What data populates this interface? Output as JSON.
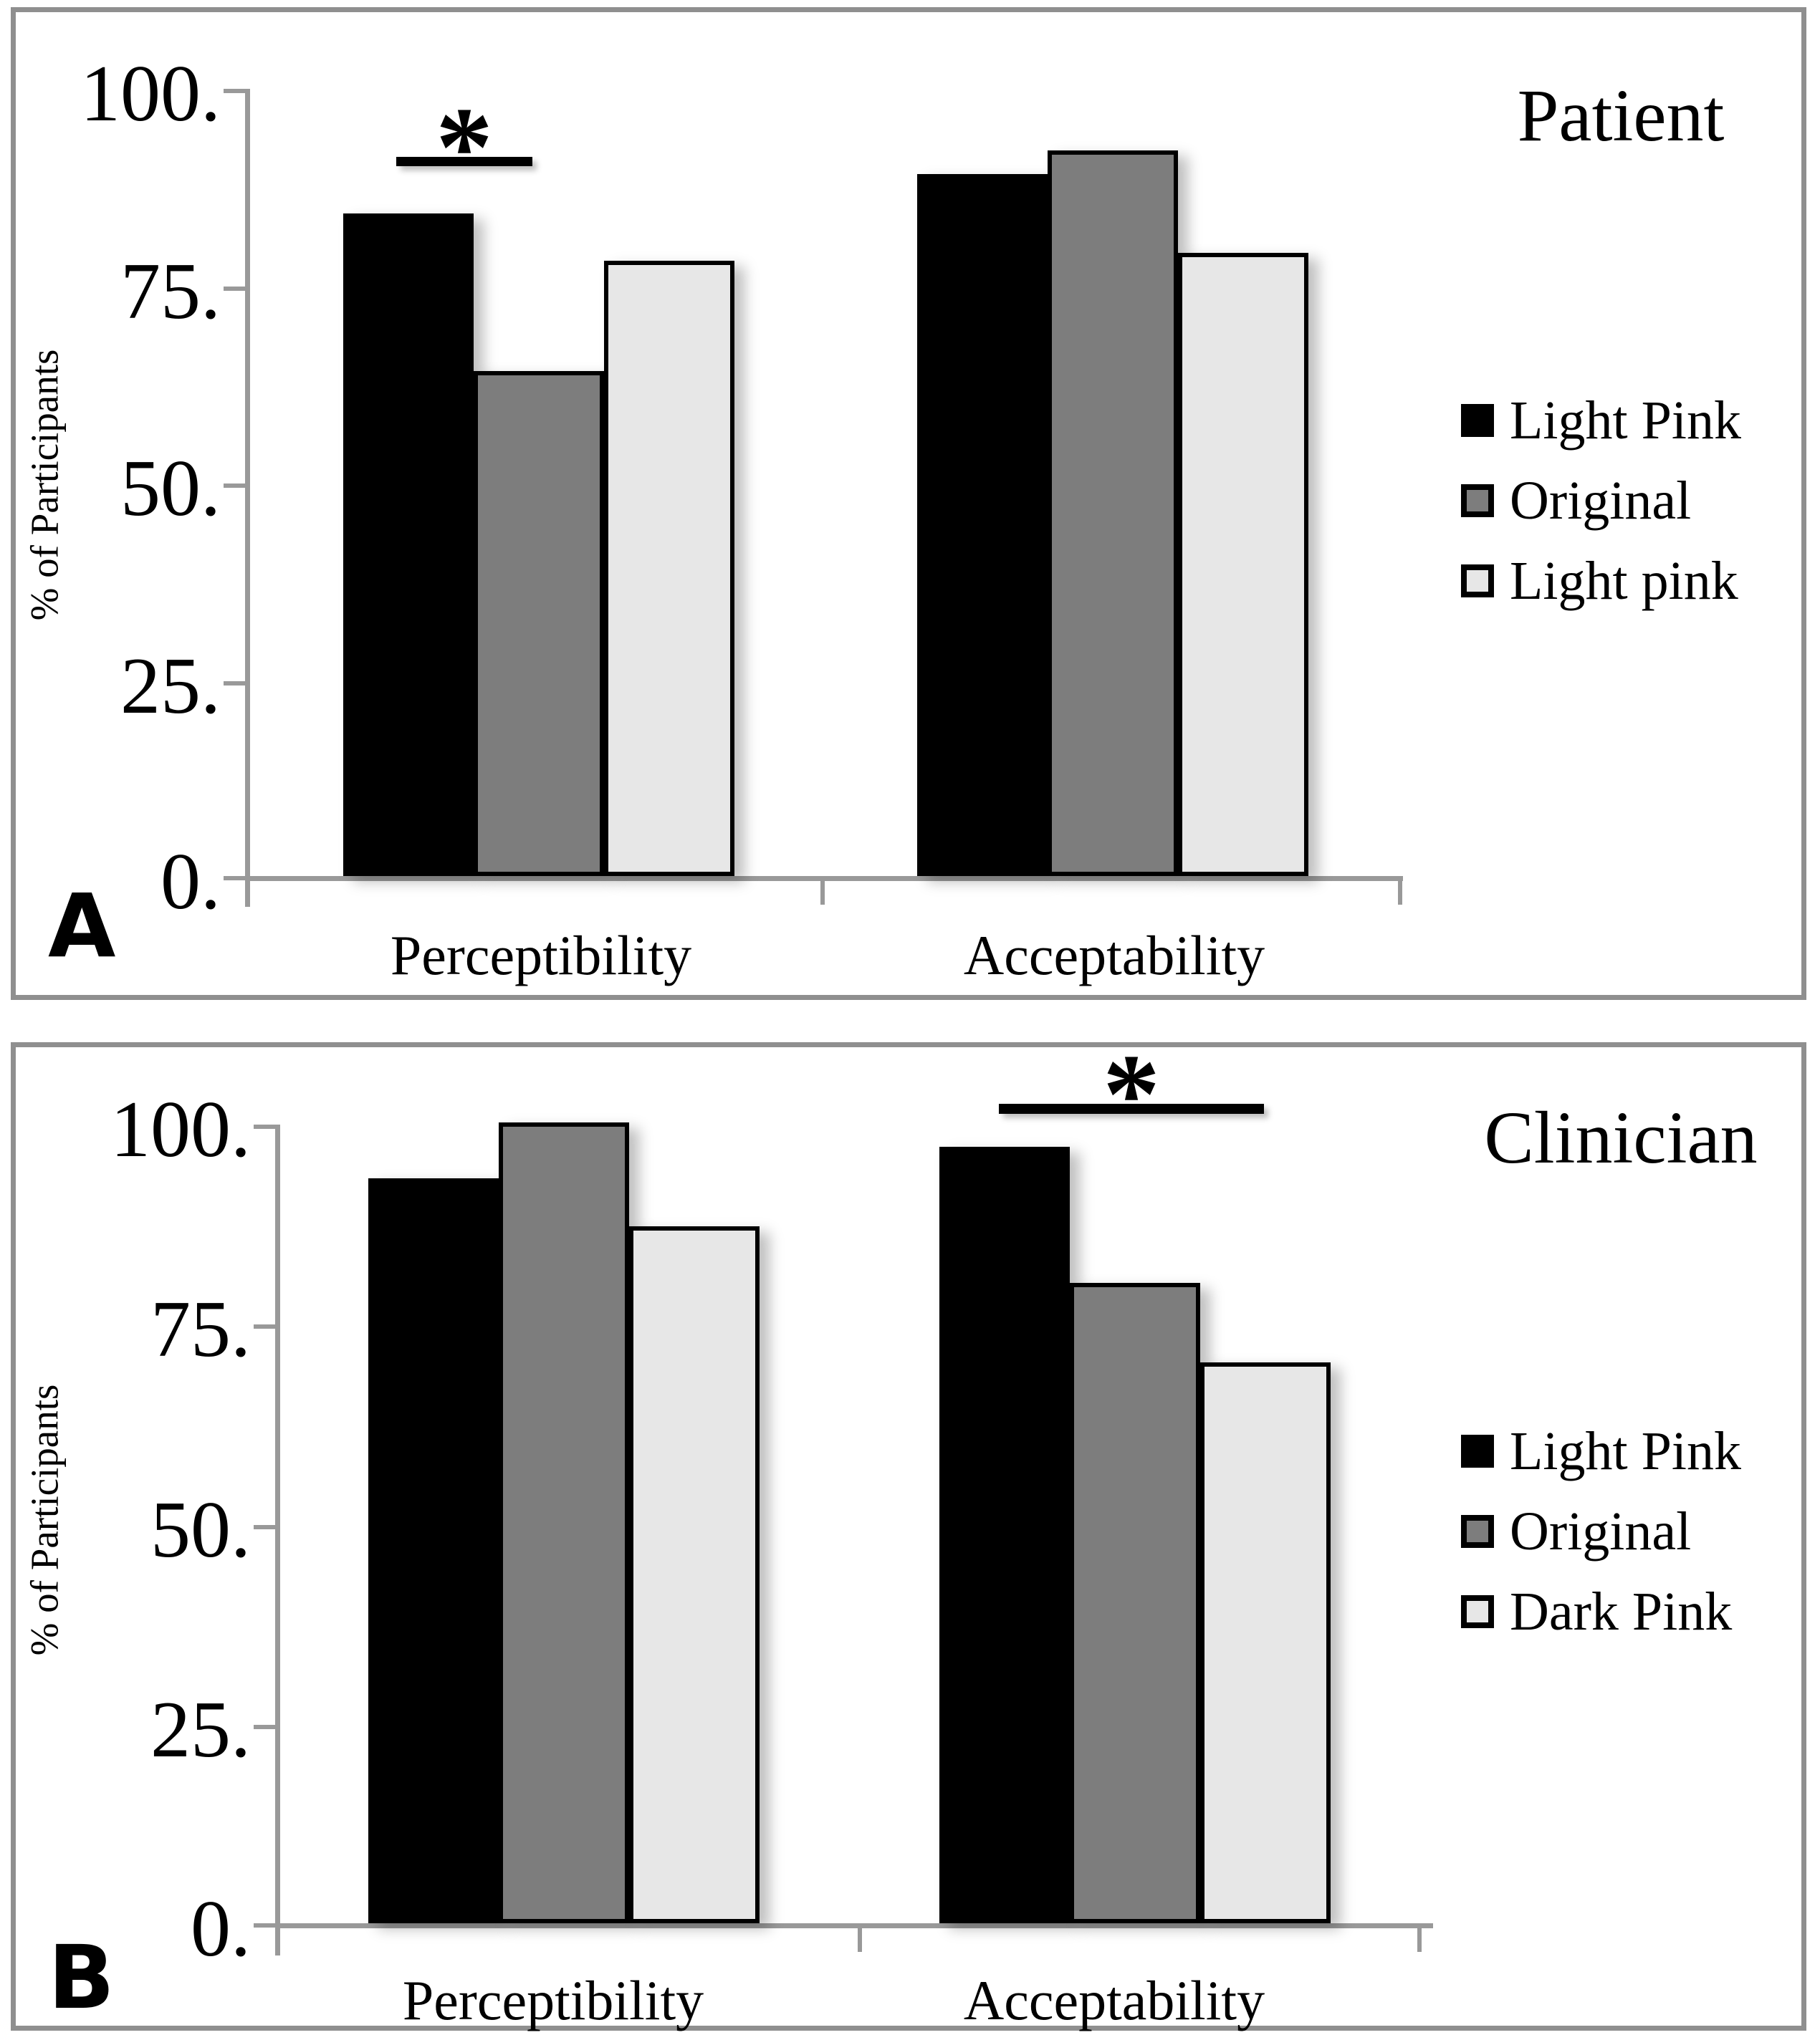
{
  "figure": {
    "y_axis_label": "% of Participants",
    "y_tick_labels": [
      "100.",
      "75.",
      "50.",
      "25.",
      "0."
    ],
    "colors": {
      "series_black": "#000000",
      "series_gray": "#7d7d7d",
      "series_light": "#e7e7e7",
      "axis_gray": "#999999",
      "panel_border_gray": "#8f8f8f"
    }
  },
  "chart_data": [
    {
      "type": "bar",
      "panel": "A",
      "label": "A",
      "title": "Patient",
      "ylabel": "% of Participants",
      "ylim": [
        0,
        100
      ],
      "grid": false,
      "legend_position": "right",
      "y_ticks": [
        "100.",
        "75.",
        "50.",
        "25.",
        "0."
      ],
      "categories": [
        "Perceptibility",
        "Acceptability"
      ],
      "series": [
        {
          "name": "Light Pink",
          "color": "#000000",
          "values": [
            84,
            89
          ]
        },
        {
          "name": "Original",
          "color": "#7d7d7d",
          "values": [
            64,
            92
          ]
        },
        {
          "name": "Light pink",
          "color": "#e7e7e7",
          "values": [
            78,
            79
          ]
        }
      ],
      "significance": {
        "marker": "*",
        "category": "Perceptibility",
        "between": [
          "Light Pink",
          "Original"
        ]
      }
    },
    {
      "type": "bar",
      "panel": "B",
      "label": "B",
      "title": "Clinician",
      "ylabel": "% of Participants",
      "ylim": [
        0,
        100
      ],
      "grid": false,
      "legend_position": "right",
      "y_ticks": [
        "100.",
        "75.",
        "50.",
        "25.",
        "0."
      ],
      "categories": [
        "Perceptibility",
        "Acceptability"
      ],
      "series": [
        {
          "name": "Light Pink",
          "color": "#000000",
          "values": [
            93,
            97
          ]
        },
        {
          "name": "Original",
          "color": "#7d7d7d",
          "values": [
            100,
            80
          ]
        },
        {
          "name": "Dark Pink",
          "color": "#e7e7e7",
          "values": [
            87,
            70
          ]
        }
      ],
      "significance": {
        "marker": "*",
        "category": "Acceptability",
        "between": [
          "Light Pink",
          "Original"
        ]
      }
    }
  ]
}
